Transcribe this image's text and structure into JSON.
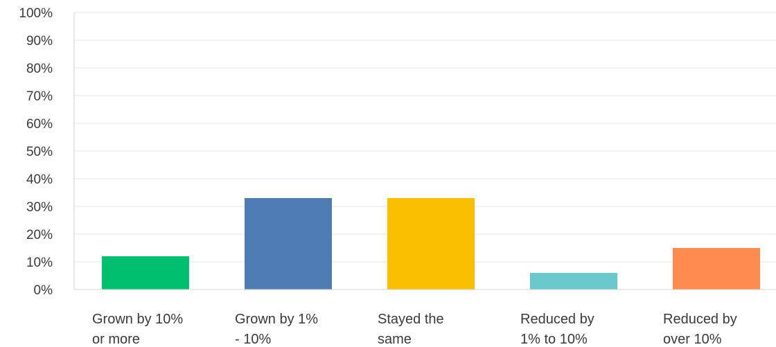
{
  "chart_data": {
    "type": "bar",
    "title": "",
    "xlabel": "",
    "ylabel": "",
    "ylim": [
      0,
      100
    ],
    "y_ticks": [
      0,
      10,
      20,
      30,
      40,
      50,
      60,
      70,
      80,
      90,
      100
    ],
    "y_tick_format": "%",
    "grid": true,
    "categories": [
      [
        "Grown by 10%",
        "or more"
      ],
      [
        "Grown by 1%",
        "- 10%"
      ],
      [
        "Stayed the",
        "same"
      ],
      [
        "Reduced by",
        "1% to 10%"
      ],
      [
        "Reduced by",
        "over 10%"
      ]
    ],
    "values": [
      12,
      33,
      33,
      6,
      15
    ],
    "colors": [
      "#00bf6f",
      "#507cb6",
      "#f9be00",
      "#6bc8cd",
      "#ff8b4f"
    ]
  }
}
